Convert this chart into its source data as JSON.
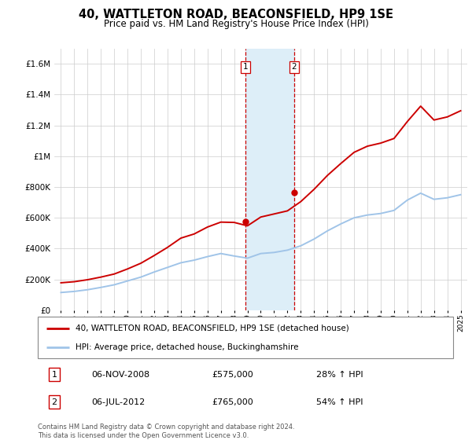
{
  "title": "40, WATTLETON ROAD, BEACONSFIELD, HP9 1SE",
  "subtitle": "Price paid vs. HM Land Registry's House Price Index (HPI)",
  "hpi_label": "HPI: Average price, detached house, Buckinghamshire",
  "price_label": "40, WATTLETON ROAD, BEACONSFIELD, HP9 1SE (detached house)",
  "footer": "Contains HM Land Registry data © Crown copyright and database right 2024.\nThis data is licensed under the Open Government Licence v3.0.",
  "sale1": {
    "date": "06-NOV-2008",
    "price": 575000,
    "hpi_pct": "28%"
  },
  "sale2": {
    "date": "06-JUL-2012",
    "price": 765000,
    "hpi_pct": "54%"
  },
  "sale1_x": 2008.85,
  "sale2_x": 2012.5,
  "ylim": [
    0,
    1700000
  ],
  "xlim": [
    1994.5,
    2025.5
  ],
  "hpi_color": "#a0c4e8",
  "price_color": "#cc0000",
  "highlight_color": "#ddeef8",
  "highlight_border": "#cc0000",
  "years": [
    1995,
    1996,
    1997,
    1998,
    1999,
    2000,
    2001,
    2002,
    2003,
    2004,
    2005,
    2006,
    2007,
    2008,
    2009,
    2010,
    2011,
    2012,
    2013,
    2014,
    2015,
    2016,
    2017,
    2018,
    2019,
    2020,
    2021,
    2022,
    2023,
    2024,
    2025
  ],
  "hpi_values": [
    115000,
    122000,
    133000,
    148000,
    165000,
    190000,
    215000,
    248000,
    278000,
    308000,
    325000,
    348000,
    368000,
    352000,
    338000,
    368000,
    375000,
    390000,
    418000,
    462000,
    515000,
    560000,
    600000,
    618000,
    628000,
    648000,
    715000,
    760000,
    720000,
    730000,
    750000
  ],
  "price_values": [
    178000,
    185000,
    198000,
    215000,
    235000,
    268000,
    305000,
    355000,
    408000,
    468000,
    495000,
    540000,
    572000,
    570000,
    548000,
    605000,
    625000,
    645000,
    705000,
    785000,
    875000,
    952000,
    1025000,
    1065000,
    1085000,
    1115000,
    1225000,
    1325000,
    1235000,
    1255000,
    1295000
  ]
}
